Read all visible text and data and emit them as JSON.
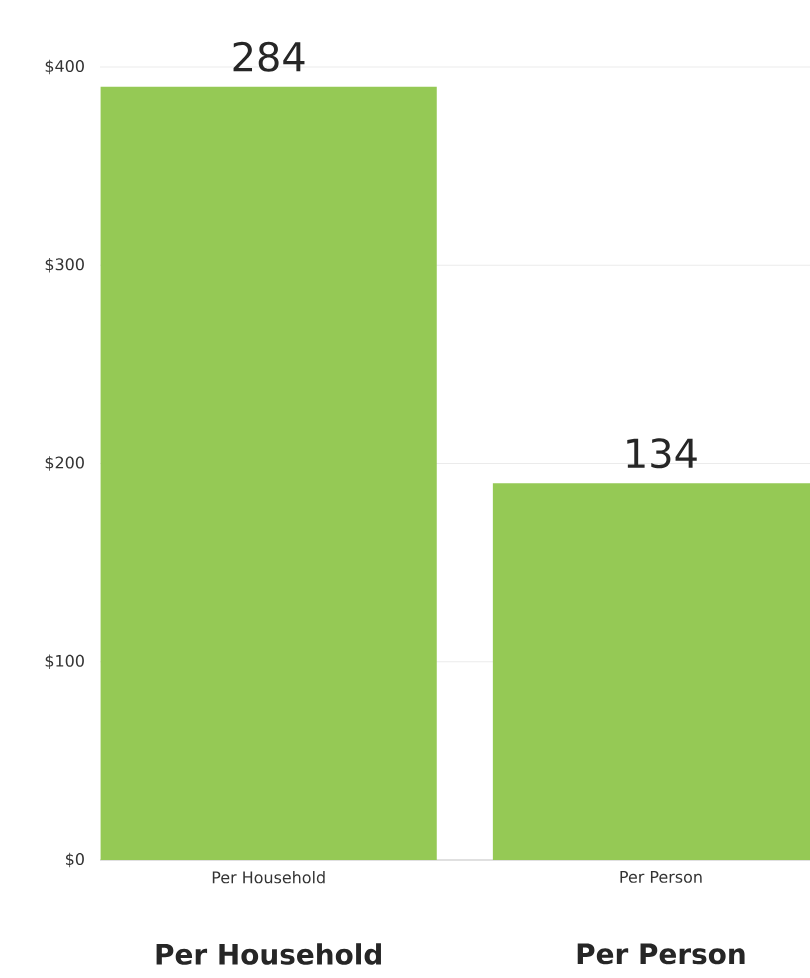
{
  "chart_data": {
    "type": "bar",
    "categories": [
      "Per Household",
      "Per Person"
    ],
    "values": [
      390,
      190
    ],
    "color": "#95c955",
    "ylim": [
      0,
      400
    ],
    "yticks": [
      {
        "value": 0,
        "label": "$0"
      },
      {
        "value": 100,
        "label": "$100"
      },
      {
        "value": 200,
        "label": "$200"
      },
      {
        "value": 300,
        "label": "$300"
      },
      {
        "value": 400,
        "label": "$400"
      }
    ],
    "grid": "y",
    "annotations": [
      {
        "text": "284",
        "x": "Per Household",
        "y": 390
      },
      {
        "text": "134",
        "x": "Per Person",
        "y": 190
      },
      "Per Household",
      "Per Person"
    ]
  }
}
